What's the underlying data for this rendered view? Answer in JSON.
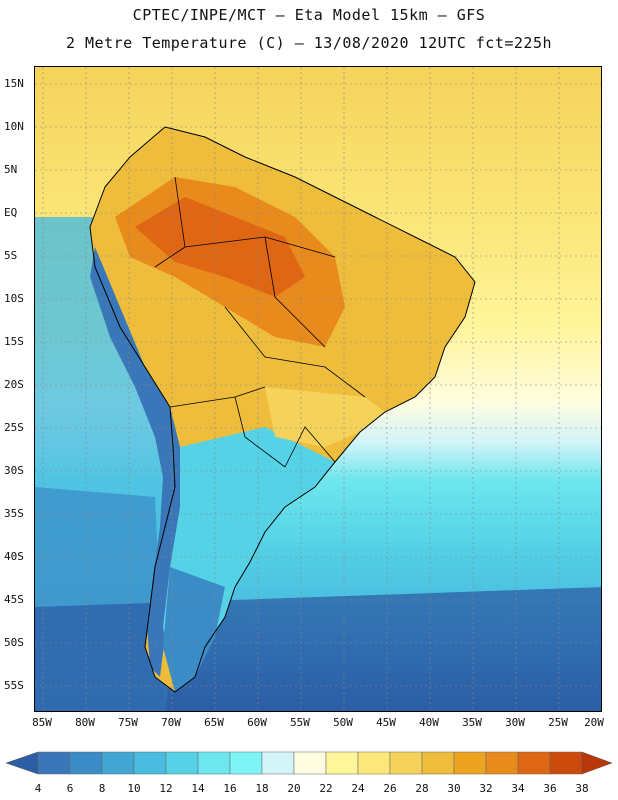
{
  "header": {
    "line1": "CPTEC/INPE/MCT –  Eta Model 15km – GFS",
    "line2": "2 Metre Temperature (C) – 13/08/2020 12UTC fct=225h"
  },
  "axes": {
    "lat_labels": [
      "15N",
      "10N",
      "5N",
      "EQ",
      "5S",
      "10S",
      "15S",
      "20S",
      "25S",
      "30S",
      "35S",
      "40S",
      "45S",
      "50S",
      "55S"
    ],
    "lon_labels": [
      "85W",
      "80W",
      "75W",
      "70W",
      "65W",
      "60W",
      "55W",
      "50W",
      "45W",
      "40W",
      "35W",
      "30W",
      "25W",
      "20W"
    ]
  },
  "legend": {
    "values": [
      "4",
      "6",
      "8",
      "10",
      "12",
      "14",
      "16",
      "18",
      "20",
      "22",
      "24",
      "26",
      "28",
      "30",
      "32",
      "34",
      "36",
      "38"
    ],
    "colors": [
      "#2c5ea6",
      "#3a77b8",
      "#3b8cc6",
      "#41a6d4",
      "#49bcdf",
      "#55d2e6",
      "#6de6ee",
      "#7ff4f6",
      "#d3f4f8",
      "#fffde0",
      "#fff59a",
      "#fbe77a",
      "#f5d35a",
      "#efbd3c",
      "#eca420",
      "#e98a1c",
      "#df6612",
      "#cc4a0c",
      "#b8360a"
    ]
  }
}
